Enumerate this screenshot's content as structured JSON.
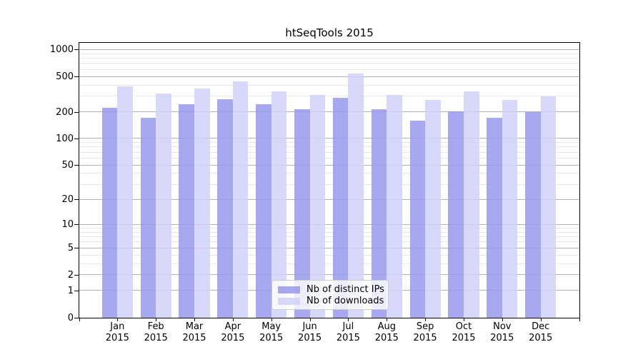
{
  "chart_data": {
    "type": "bar",
    "title": "htSeqTools 2015",
    "months": [
      "Jan",
      "Feb",
      "Mar",
      "Apr",
      "May",
      "Jun",
      "Jul",
      "Aug",
      "Sep",
      "Oct",
      "Nov",
      "Dec"
    ],
    "year": "2015",
    "series": [
      {
        "key": "distinct-ips",
        "name": "Nb of distinct IPs",
        "color": "#a8a8f0",
        "fill": "rgba(153,153,237,0.85)",
        "values": [
          223,
          172,
          245,
          282,
          245,
          217,
          293,
          215,
          161,
          206,
          174,
          200
        ]
      },
      {
        "key": "downloads",
        "name": "Nb of downloads",
        "color": "#d8d8fa",
        "fill": "rgba(209,209,249,0.85)",
        "values": [
          388,
          325,
          372,
          445,
          340,
          311,
          546,
          311,
          275,
          345,
          273,
          304
        ]
      }
    ],
    "y_ticks": [
      0,
      1,
      2,
      5,
      10,
      20,
      50,
      100,
      200,
      500,
      1000
    ],
    "y_minor_ticks": [
      3,
      4,
      6,
      7,
      8,
      9,
      30,
      40,
      60,
      70,
      80,
      90,
      300,
      400,
      600,
      700,
      800,
      900
    ],
    "y_scale": "log10(1+v)",
    "ylim": [
      0,
      1190
    ],
    "grid": true,
    "grid_major_color": "#b0b0b0",
    "grid_minor_color": "#e8e8e8",
    "axis_color": "#000000",
    "legend_position": "lower center"
  }
}
